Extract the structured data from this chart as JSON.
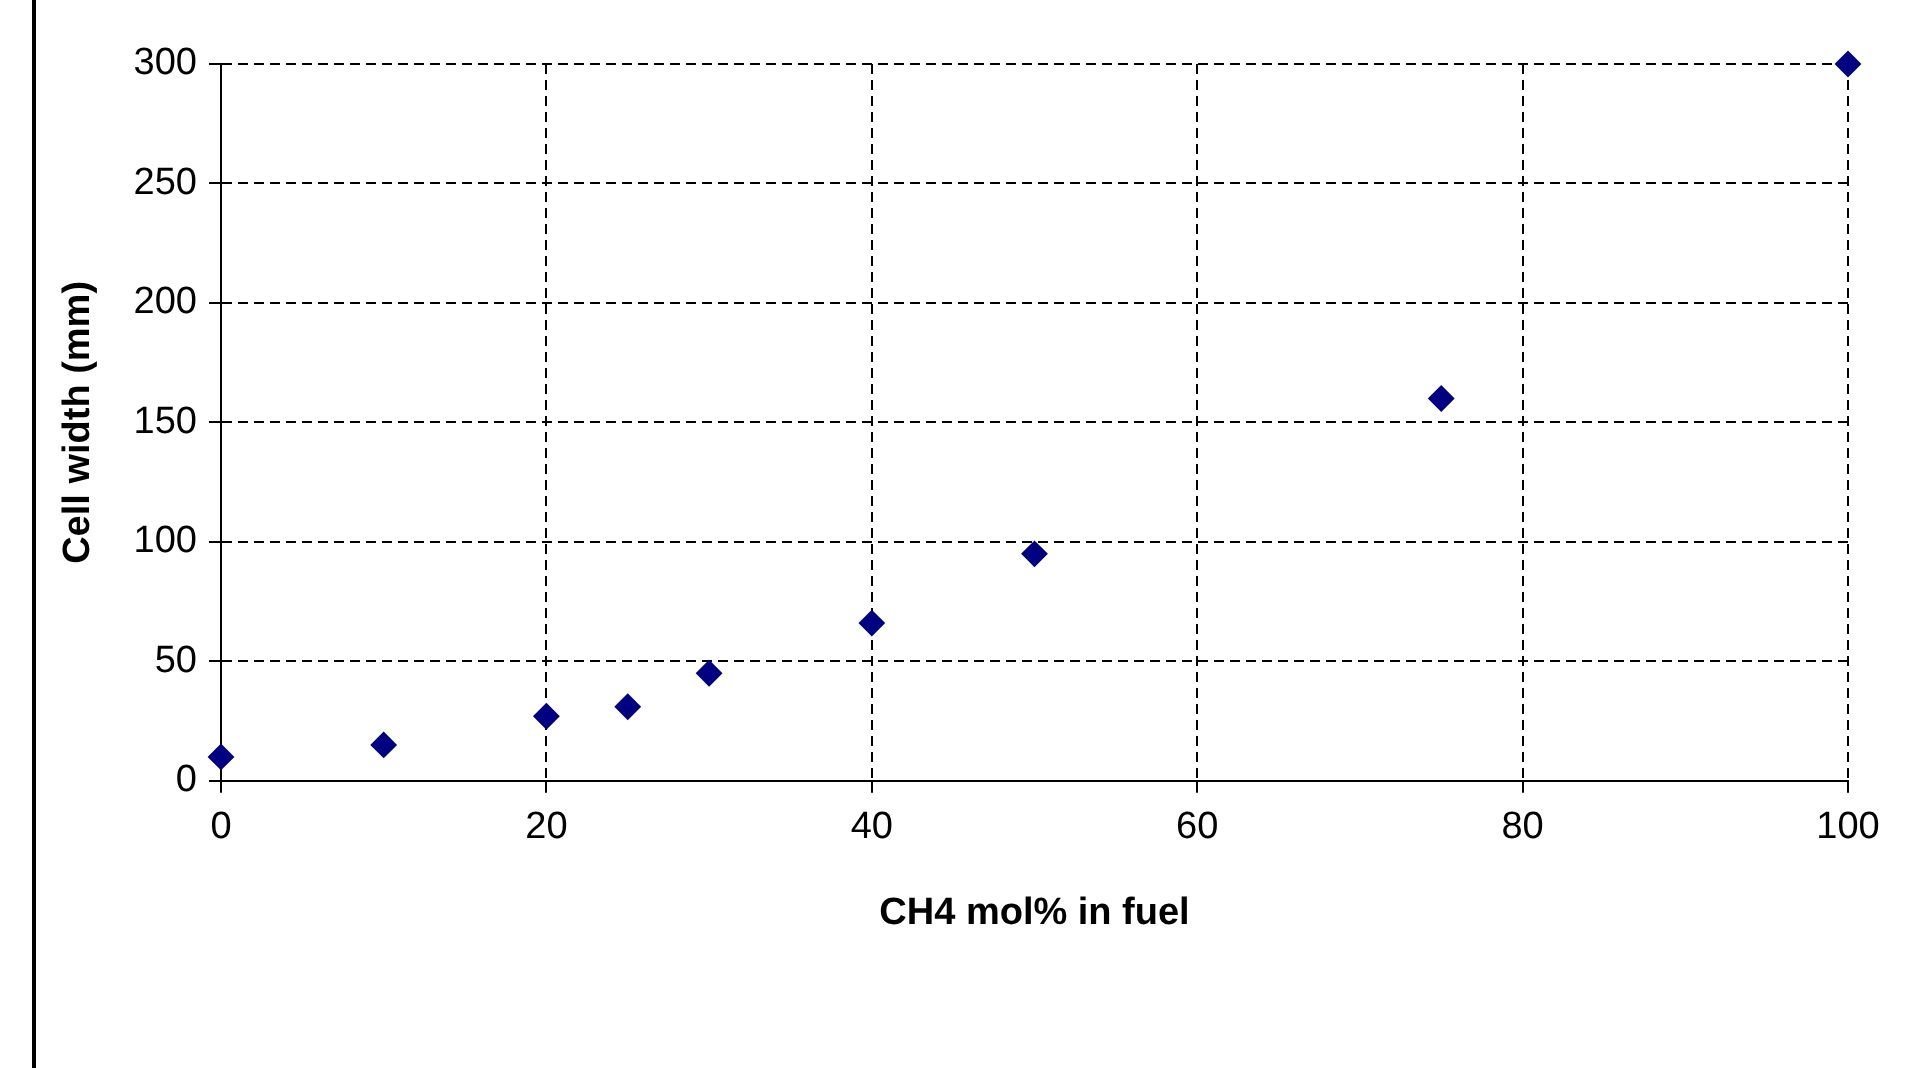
{
  "chart_data": {
    "type": "scatter",
    "xlabel": "CH4 mol% in fuel",
    "ylabel": "Cell width (mm)",
    "x": [
      0,
      10,
      20,
      25,
      30,
      40,
      50,
      75,
      100
    ],
    "series": [
      {
        "color": "#000080",
        "values": [
          10,
          15,
          27,
          31,
          45,
          66,
          95,
          160,
          300
        ]
      }
    ],
    "xlim": [
      0,
      100
    ],
    "xticks": [
      0,
      20,
      40,
      60,
      80,
      100
    ],
    "ylim": [
      0,
      300
    ],
    "yticks": [
      0,
      50,
      100,
      150,
      200,
      250,
      300
    ],
    "grid": true,
    "legend": false,
    "marker": "diamond"
  }
}
